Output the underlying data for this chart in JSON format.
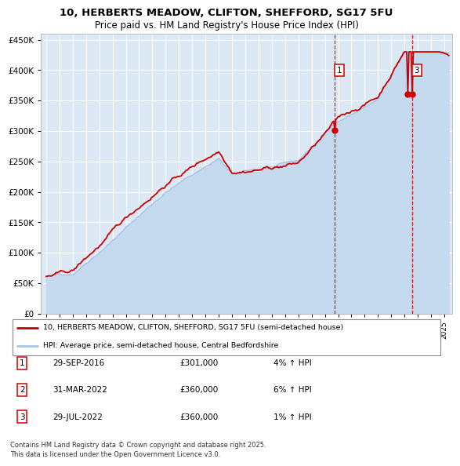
{
  "title1": "10, HERBERTS MEADOW, CLIFTON, SHEFFORD, SG17 5FU",
  "title2": "Price paid vs. HM Land Registry's House Price Index (HPI)",
  "bg_color": "#ffffff",
  "plot_bg_color": "#dce9f5",
  "grid_color": "#ffffff",
  "hpi_color": "#a8c4e0",
  "hpi_fill_color": "#c5d9ef",
  "price_color": "#cc0000",
  "marker_color": "#cc0000",
  "dashed_line_color": "#cc0000",
  "ylim": [
    0,
    450000
  ],
  "yticks": [
    0,
    50000,
    100000,
    150000,
    200000,
    250000,
    300000,
    350000,
    400000,
    450000
  ],
  "purchase_year_vals": [
    2016.75,
    2022.25,
    2022.583
  ],
  "purchase_prices": [
    301000,
    360000,
    360000
  ],
  "purchase_labels": [
    "1",
    "2",
    "3"
  ],
  "show_dashed": [
    true,
    false,
    true
  ],
  "show_label_in_chart": [
    true,
    false,
    true
  ],
  "legend_line1": "10, HERBERTS MEADOW, CLIFTON, SHEFFORD, SG17 5FU (semi-detached house)",
  "legend_line2": "HPI: Average price, semi-detached house, Central Bedfordshire",
  "table_data": [
    [
      "1",
      "29-SEP-2016",
      "£301,000",
      "4% ↑ HPI"
    ],
    [
      "2",
      "31-MAR-2022",
      "£360,000",
      "6% ↑ HPI"
    ],
    [
      "3",
      "29-JUL-2022",
      "£360,000",
      "1% ↑ HPI"
    ]
  ],
  "footer": "Contains HM Land Registry data © Crown copyright and database right 2025.\nThis data is licensed under the Open Government Licence v3.0."
}
